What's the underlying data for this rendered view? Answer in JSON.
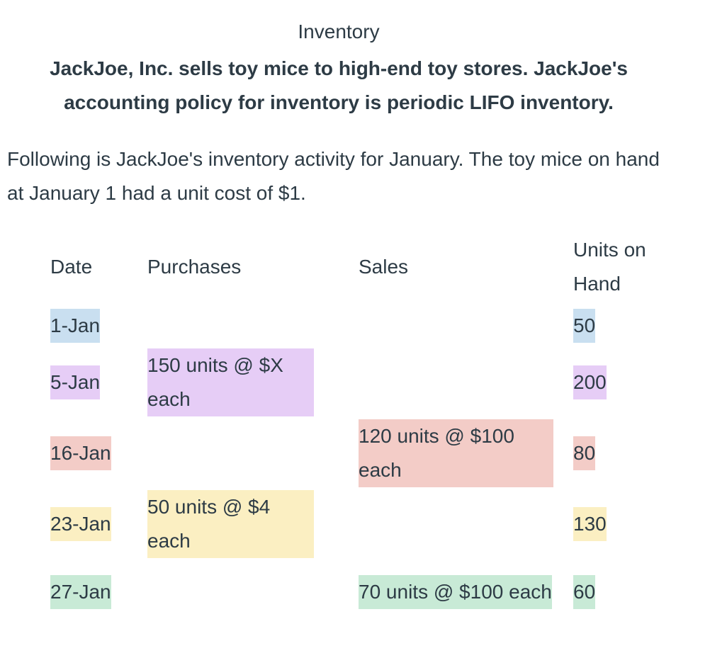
{
  "header": {
    "title": "Inventory",
    "subtitle": "JackJoe, Inc. sells toy mice to high-end toy stores. JackJoe's accounting policy for inventory is periodic LIFO inventory."
  },
  "intro": "Following is JackJoe's inventory activity for January. The toy mice on hand at January 1 had a unit cost of $1.",
  "table": {
    "columns": [
      "Date",
      "Purchases",
      "Sales",
      "Units on Hand"
    ],
    "rows": [
      [
        "1-Jan",
        null,
        null,
        50
      ],
      [
        "5-Jan",
        "150 units @ $X each",
        null,
        200
      ],
      [
        "16-Jan",
        null,
        "120 units @ $100 each",
        80
      ],
      [
        "23-Jan",
        "50 units @ $4 each",
        null,
        130
      ],
      [
        "27-Jan",
        null,
        "70 units @ $100 each",
        60
      ]
    ]
  }
}
